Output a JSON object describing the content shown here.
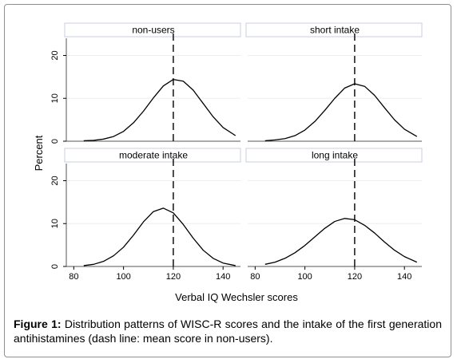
{
  "chart_data": {
    "type": "line",
    "ylabel": "Percent",
    "xlabel": "Verbal IQ Wechsler scores",
    "xlim": [
      77,
      147
    ],
    "ylim": [
      0,
      24
    ],
    "xticks": [
      80,
      100,
      120,
      140
    ],
    "yticks": [
      0,
      10,
      20
    ],
    "reference_line": {
      "x": 120,
      "style": "dashed"
    },
    "panels": [
      {
        "label": "non-users",
        "x": [
          84,
          88,
          92,
          96,
          100,
          104,
          108,
          112,
          116,
          120,
          124,
          128,
          132,
          136,
          140,
          145
        ],
        "y": [
          0.1,
          0.2,
          0.5,
          1.1,
          2.3,
          4.3,
          7.0,
          10.1,
          12.9,
          14.4,
          14.0,
          11.9,
          8.8,
          5.7,
          3.2,
          1.3
        ]
      },
      {
        "label": "short intake",
        "x": [
          84,
          88,
          92,
          96,
          100,
          104,
          108,
          112,
          116,
          120,
          124,
          128,
          132,
          136,
          140,
          145
        ],
        "y": [
          0.1,
          0.3,
          0.6,
          1.3,
          2.6,
          4.6,
          7.2,
          10.0,
          12.4,
          13.4,
          12.8,
          10.7,
          7.8,
          5.0,
          2.8,
          1.1
        ]
      },
      {
        "label": "moderate intake",
        "x": [
          84,
          88,
          92,
          96,
          100,
          104,
          108,
          112,
          116,
          120,
          124,
          128,
          132,
          136,
          140,
          145
        ],
        "y": [
          0.2,
          0.5,
          1.2,
          2.5,
          4.5,
          7.3,
          10.4,
          12.8,
          13.6,
          12.5,
          9.8,
          6.6,
          3.8,
          1.9,
          0.8,
          0.2
        ]
      },
      {
        "label": "long intake",
        "x": [
          84,
          88,
          92,
          96,
          100,
          104,
          108,
          112,
          116,
          120,
          124,
          128,
          132,
          136,
          140,
          145
        ],
        "y": [
          0.5,
          1.0,
          1.9,
          3.2,
          4.9,
          6.9,
          8.9,
          10.5,
          11.2,
          10.9,
          9.6,
          7.8,
          5.7,
          3.8,
          2.3,
          1.0
        ]
      }
    ]
  },
  "caption": {
    "label": "Figure 1:",
    "text": " Distribution patterns of WISC-R scores and the intake of the first generation antihistamines (dash line: mean score in non-users)."
  }
}
